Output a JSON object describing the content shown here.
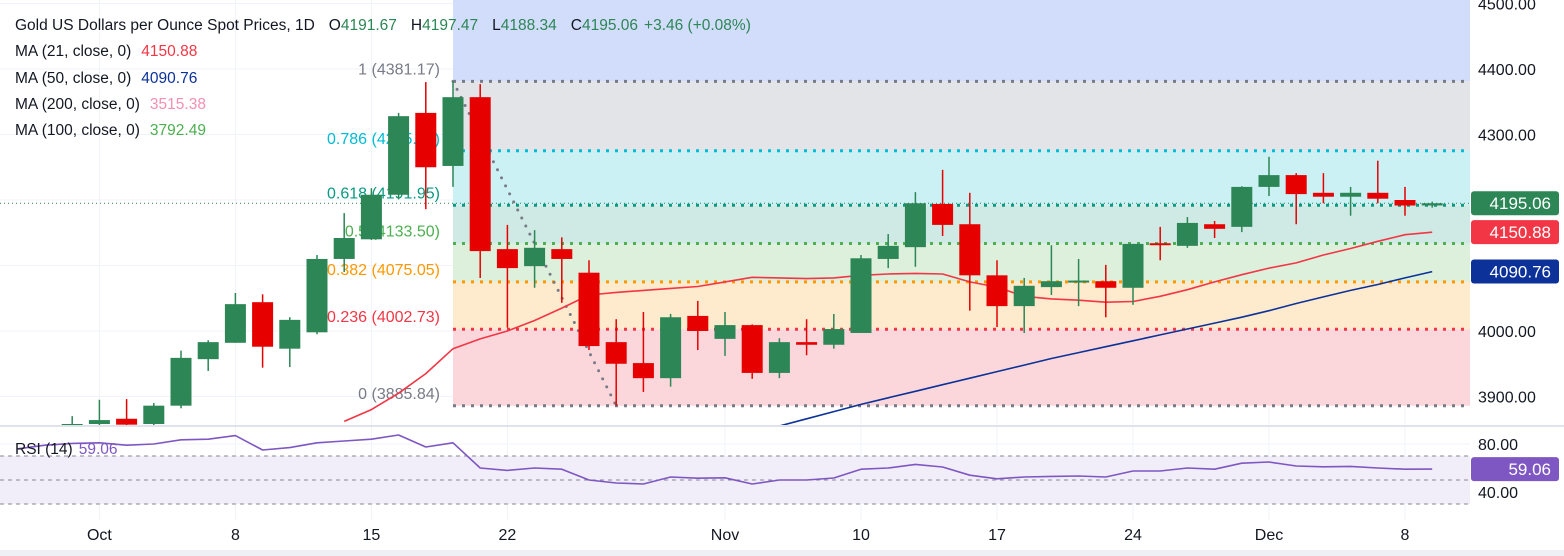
{
  "header": {
    "title": "Gold US Dollars per Ounce Spot Prices, 1D",
    "ohlc": {
      "o_label": "O",
      "o": "4191.67",
      "h_label": "H",
      "h": "4197.47",
      "l_label": "L",
      "l": "4188.34",
      "c_label": "C",
      "c": "4195.06",
      "change": "+3.46 (+0.08%)"
    },
    "indicators": [
      {
        "label": "MA (21, close, 0)",
        "value": "4150.88",
        "color": "#f23645"
      },
      {
        "label": "MA (50, close, 0)",
        "value": "4090.76",
        "color": "#0c3299"
      },
      {
        "label": "MA (200, close, 0)",
        "value": "3515.38",
        "color": "#f48fb1"
      },
      {
        "label": "MA (100, close, 0)",
        "value": "3792.49",
        "color": "#4caf50"
      }
    ]
  },
  "rsi_legend": {
    "label": "RSI (14)",
    "value": "59.06"
  },
  "colors": {
    "up": "#2c8655",
    "down": "#e60000",
    "value_green": "#2c8655",
    "rsi": "#7e57c2",
    "ma21": "#f23645",
    "ma50": "#0c3299",
    "last_price": "#2c8655"
  },
  "chart_data": {
    "type": "candlestick",
    "title": "Gold US Dollars per Ounce Spot Prices, 1D",
    "interval": "1D",
    "price_axis": {
      "ticks": [
        "4500.00",
        "4400.00",
        "4300.00",
        "4000.00",
        "3900.00"
      ],
      "tick_values": [
        4500,
        4400,
        4300,
        4000,
        3900
      ],
      "ylim": [
        3855,
        4505
      ]
    },
    "time_axis": {
      "labels": [
        {
          "text": "Oct",
          "date": "Oct 1"
        },
        {
          "text": "8",
          "date": "Oct 8"
        },
        {
          "text": "15",
          "date": "Oct 15"
        },
        {
          "text": "22",
          "date": "Oct 22"
        },
        {
          "text": "Nov",
          "date": "Nov 3"
        },
        {
          "text": "10",
          "date": "Nov 10"
        },
        {
          "text": "17",
          "date": "Nov 17"
        },
        {
          "text": "24",
          "date": "Nov 24"
        },
        {
          "text": "Dec",
          "date": "Dec 1"
        },
        {
          "text": "8",
          "date": "Dec 8"
        }
      ]
    },
    "dates": [
      "Sep 26",
      "Sep 29",
      "Sep 30",
      "Oct 1",
      "Oct 2",
      "Oct 3",
      "Oct 6",
      "Oct 7",
      "Oct 8",
      "Oct 9",
      "Oct 10",
      "Oct 13",
      "Oct 14",
      "Oct 15",
      "Oct 16",
      "Oct 17",
      "Oct 20",
      "Oct 21",
      "Oct 22",
      "Oct 23",
      "Oct 24",
      "Oct 27",
      "Oct 28",
      "Oct 29",
      "Oct 30",
      "Oct 31",
      "Nov 3",
      "Nov 4",
      "Nov 5",
      "Nov 6",
      "Nov 7",
      "Nov 10",
      "Nov 11",
      "Nov 12",
      "Nov 13",
      "Nov 14",
      "Nov 17",
      "Nov 18",
      "Nov 19",
      "Nov 20",
      "Nov 21",
      "Nov 24",
      "Nov 25",
      "Nov 26",
      "Nov 27",
      "Nov 28",
      "Dec 1",
      "Dec 2",
      "Dec 3",
      "Dec 4",
      "Dec 5",
      "Dec 8",
      "Dec 9"
    ],
    "candles": [
      [
        "Sep 30",
        3857,
        3870,
        3850,
        3858
      ],
      [
        "Oct 1",
        3858,
        3895,
        3850,
        3864
      ],
      [
        "Oct 2",
        3866,
        3896,
        3850,
        3857
      ],
      [
        "Oct 3",
        3858,
        3890,
        3850,
        3886
      ],
      [
        "Oct 6",
        3886,
        3970,
        3882,
        3959
      ],
      [
        "Oct 7",
        3957,
        3986,
        3939,
        3983
      ],
      [
        "Oct 8",
        3982,
        4058,
        3982,
        4041
      ],
      [
        "Oct 9",
        4044,
        4056,
        3944,
        3976
      ],
      [
        "Oct 10",
        3973,
        4021,
        3945,
        4017
      ],
      [
        "Oct 13",
        3998,
        4116,
        3995,
        4110
      ],
      [
        "Oct 14",
        4110,
        4180,
        4090,
        4142
      ],
      [
        "Oct 15",
        4140,
        4218,
        4139,
        4208
      ],
      [
        "Oct 16",
        4208,
        4333,
        4201,
        4328
      ],
      [
        "Oct 17",
        4333,
        4380,
        4186,
        4250
      ],
      [
        "Oct 20",
        4252,
        4381.17,
        4220,
        4357
      ],
      [
        "Oct 21",
        4357,
        4377,
        4081,
        4122
      ],
      [
        "Oct 22",
        4125,
        4162,
        4005,
        4096
      ],
      [
        "Oct 23",
        4099,
        4154,
        4066,
        4127
      ],
      [
        "Oct 24",
        4125,
        4143,
        4043,
        4110
      ],
      [
        "Oct 27",
        4089,
        4108,
        3971,
        3977
      ],
      [
        "Oct 28",
        3983,
        4018,
        3885.84,
        3950
      ],
      [
        "Oct 29",
        3951,
        4029,
        3907,
        3928
      ],
      [
        "Oct 30",
        3928,
        4026,
        3915,
        4021
      ],
      [
        "Oct 31",
        4023,
        4046,
        3971,
        4000
      ],
      [
        "Nov 3",
        3988,
        4029,
        3962,
        4009
      ],
      [
        "Nov 4",
        4009,
        4010,
        3927,
        3936
      ],
      [
        "Nov 5",
        3936,
        3989,
        3928,
        3983
      ],
      [
        "Nov 6",
        3983,
        4018,
        3963,
        3979
      ],
      [
        "Nov 7",
        3979,
        4026,
        3973,
        4003
      ],
      [
        "Nov 10",
        3997,
        4116,
        3997,
        4111
      ],
      [
        "Nov 11",
        4110,
        4148,
        4096,
        4130
      ],
      [
        "Nov 12",
        4128,
        4212,
        4098,
        4195
      ],
      [
        "Nov 13",
        4194,
        4246,
        4145,
        4162
      ],
      [
        "Nov 14",
        4163,
        4211,
        4031,
        4085
      ],
      [
        "Nov 17",
        4085,
        4108,
        4006,
        4038
      ],
      [
        "Nov 18",
        4038,
        4081,
        3997,
        4069
      ],
      [
        "Nov 19",
        4067,
        4131,
        4055,
        4076
      ],
      [
        "Nov 20",
        4075,
        4110,
        4038,
        4077
      ],
      [
        "Nov 21",
        4076,
        4101,
        4021,
        4066
      ],
      [
        "Nov 24",
        4066,
        4133,
        4040,
        4133
      ],
      [
        "Nov 25",
        4134,
        4159,
        4108,
        4132
      ],
      [
        "Nov 26",
        4130,
        4174,
        4127,
        4165
      ],
      [
        "Nov 27",
        4163,
        4168,
        4142,
        4156
      ],
      [
        "Nov 28",
        4159,
        4221,
        4151,
        4220
      ],
      [
        "Dec 1",
        4220,
        4266,
        4206,
        4238
      ],
      [
        "Dec 2",
        4238,
        4241,
        4163,
        4209
      ],
      [
        "Dec 3",
        4211,
        4241,
        4195,
        4205
      ],
      [
        "Dec 4",
        4205,
        4220,
        4176,
        4211
      ],
      [
        "Dec 5",
        4211,
        4260,
        4195,
        4202
      ],
      [
        "Dec 8",
        4200,
        4220,
        4176,
        4191.6
      ],
      [
        "Dec 9",
        4191.67,
        4197.47,
        4188.34,
        4195.06
      ]
    ],
    "ma21": [
      [
        "Oct 14",
        3862
      ],
      [
        "Oct 15",
        3880
      ],
      [
        "Oct 16",
        3905
      ],
      [
        "Oct 17",
        3935
      ],
      [
        "Oct 20",
        3973
      ],
      [
        "Oct 21",
        3988
      ],
      [
        "Oct 22",
        4000
      ],
      [
        "Oct 23",
        4016
      ],
      [
        "Oct 24",
        4035
      ],
      [
        "Oct 27",
        4055
      ],
      [
        "Oct 28",
        4059
      ],
      [
        "Oct 29",
        4062
      ],
      [
        "Oct 30",
        4065
      ],
      [
        "Oct 31",
        4068
      ],
      [
        "Nov 3",
        4075
      ],
      [
        "Nov 4",
        4082
      ],
      [
        "Nov 5",
        4081
      ],
      [
        "Nov 6",
        4080
      ],
      [
        "Nov 7",
        4081
      ],
      [
        "Nov 10",
        4085
      ],
      [
        "Nov 11",
        4087
      ],
      [
        "Nov 12",
        4088
      ],
      [
        "Nov 13",
        4087
      ],
      [
        "Nov 14",
        4075
      ],
      [
        "Nov 17",
        4067
      ],
      [
        "Nov 18",
        4053
      ],
      [
        "Nov 19",
        4049
      ],
      [
        "Nov 20",
        4047
      ],
      [
        "Nov 21",
        4044
      ],
      [
        "Nov 24",
        4045
      ],
      [
        "Nov 25",
        4053
      ],
      [
        "Nov 26",
        4063
      ],
      [
        "Nov 27",
        4075
      ],
      [
        "Nov 28",
        4086
      ],
      [
        "Dec 1",
        4096
      ],
      [
        "Dec 2",
        4104
      ],
      [
        "Dec 3",
        4116
      ],
      [
        "Dec 4",
        4126
      ],
      [
        "Dec 5",
        4137
      ],
      [
        "Dec 8",
        4147
      ],
      [
        "Dec 9",
        4150.88
      ]
    ],
    "ma50": [
      [
        "Nov 5",
        3855
      ],
      [
        "Nov 6",
        3866
      ],
      [
        "Nov 7",
        3877
      ],
      [
        "Nov 10",
        3888
      ],
      [
        "Nov 11",
        3898
      ],
      [
        "Nov 12",
        3908
      ],
      [
        "Nov 13",
        3918
      ],
      [
        "Nov 14",
        3928
      ],
      [
        "Nov 17",
        3938
      ],
      [
        "Nov 18",
        3948
      ],
      [
        "Nov 19",
        3958
      ],
      [
        "Nov 20",
        3967
      ],
      [
        "Nov 21",
        3976
      ],
      [
        "Nov 24",
        3985
      ],
      [
        "Nov 25",
        3994
      ],
      [
        "Nov 26",
        4003
      ],
      [
        "Nov 27",
        4012
      ],
      [
        "Nov 28",
        4021
      ],
      [
        "Dec 1",
        4031
      ],
      [
        "Dec 2",
        4042
      ],
      [
        "Dec 3",
        4052
      ],
      [
        "Dec 4",
        4062
      ],
      [
        "Dec 5",
        4071
      ],
      [
        "Dec 8",
        4081
      ],
      [
        "Dec 9",
        4090.76
      ]
    ],
    "fibonacci": {
      "from": {
        "date": "Oct 20",
        "price": 4381.17
      },
      "to": {
        "date": "Oct 28",
        "price": 3885.84
      },
      "levels": [
        {
          "ratio": 1,
          "price": 4381.17,
          "label": "1 (4381.17)",
          "color": "#787b86",
          "fill": "#e3e4e7"
        },
        {
          "ratio": 0.786,
          "price": 4275.17,
          "label": "0.786 (4275.17)",
          "color": "#00bcd4",
          "fill": "#cbf1f4"
        },
        {
          "ratio": 0.618,
          "price": 4191.95,
          "label": "0.618 (4191.95)",
          "color": "#089981",
          "fill": "#cfeae4"
        },
        {
          "ratio": 0.5,
          "price": 4133.5,
          "label": "0.5 (4133.50)",
          "color": "#4caf50",
          "fill": "#ddf0dc"
        },
        {
          "ratio": 0.382,
          "price": 4075.05,
          "label": "0.382 (4075.05)",
          "color": "#ff9800",
          "fill": "#feeacd"
        },
        {
          "ratio": 0.236,
          "price": 4002.73,
          "label": "0.236 (4002.73)",
          "color": "#f23645",
          "fill": "#fbd7db"
        },
        {
          "ratio": 0,
          "price": 3885.84,
          "label": "0 (3885.84)",
          "color": "#787b86",
          "fill": null
        }
      ],
      "above_fill": "#d2ddfb"
    },
    "last_price": {
      "value": 4195.06,
      "label": "4195.06",
      "color": "#2c8655"
    },
    "price_badges": [
      {
        "label": "4195.06",
        "value": 4195.06,
        "color": "#2c8655"
      },
      {
        "label": "4150.88",
        "value": 4150.88,
        "color": "#f23645"
      },
      {
        "label": "4090.76",
        "value": 4090.76,
        "color": "#0c3299"
      }
    ],
    "rsi": {
      "name": "RSI (14)",
      "ticks": [
        "80.00",
        "40.00"
      ],
      "tick_values": [
        80,
        40
      ],
      "bands": [
        70,
        50,
        30
      ],
      "badge": {
        "label": "59.06",
        "value": 59.06
      },
      "values": [
        [
          "Sep 26",
          76
        ],
        [
          "Sep 29",
          79
        ],
        [
          "Sep 30",
          80.5
        ],
        [
          "Oct 1",
          81
        ],
        [
          "Oct 2",
          79
        ],
        [
          "Oct 3",
          80
        ],
        [
          "Oct 6",
          83.5
        ],
        [
          "Oct 7",
          84
        ],
        [
          "Oct 8",
          87
        ],
        [
          "Oct 9",
          75
        ],
        [
          "Oct 10",
          77
        ],
        [
          "Oct 13",
          81
        ],
        [
          "Oct 14",
          82.5
        ],
        [
          "Oct 15",
          84
        ],
        [
          "Oct 16",
          87.5
        ],
        [
          "Oct 17",
          77.5
        ],
        [
          "Oct 20",
          81
        ],
        [
          "Oct 21",
          60
        ],
        [
          "Oct 22",
          58
        ],
        [
          "Oct 23",
          60
        ],
        [
          "Oct 24",
          59
        ],
        [
          "Oct 27",
          50
        ],
        [
          "Oct 28",
          47.5
        ],
        [
          "Oct 29",
          46.7
        ],
        [
          "Oct 30",
          52.5
        ],
        [
          "Oct 31",
          51.5
        ],
        [
          "Nov 3",
          51.8
        ],
        [
          "Nov 4",
          46.7
        ],
        [
          "Nov 5",
          50
        ],
        [
          "Nov 6",
          50
        ],
        [
          "Nov 7",
          51.7
        ],
        [
          "Nov 10",
          59
        ],
        [
          "Nov 11",
          60
        ],
        [
          "Nov 12",
          63
        ],
        [
          "Nov 13",
          60.8
        ],
        [
          "Nov 14",
          54
        ],
        [
          "Nov 17",
          51
        ],
        [
          "Nov 18",
          52.5
        ],
        [
          "Nov 19",
          53
        ],
        [
          "Nov 20",
          53.3
        ],
        [
          "Nov 21",
          52.5
        ],
        [
          "Nov 24",
          57.5
        ],
        [
          "Nov 25",
          57.5
        ],
        [
          "Nov 26",
          60
        ],
        [
          "Nov 27",
          59
        ],
        [
          "Nov 28",
          64
        ],
        [
          "Dec 1",
          65
        ],
        [
          "Dec 2",
          61.7
        ],
        [
          "Dec 3",
          61
        ],
        [
          "Dec 4",
          61.3
        ],
        [
          "Dec 5",
          60
        ],
        [
          "Dec 8",
          59
        ],
        [
          "Dec 9",
          59.06
        ]
      ]
    }
  }
}
